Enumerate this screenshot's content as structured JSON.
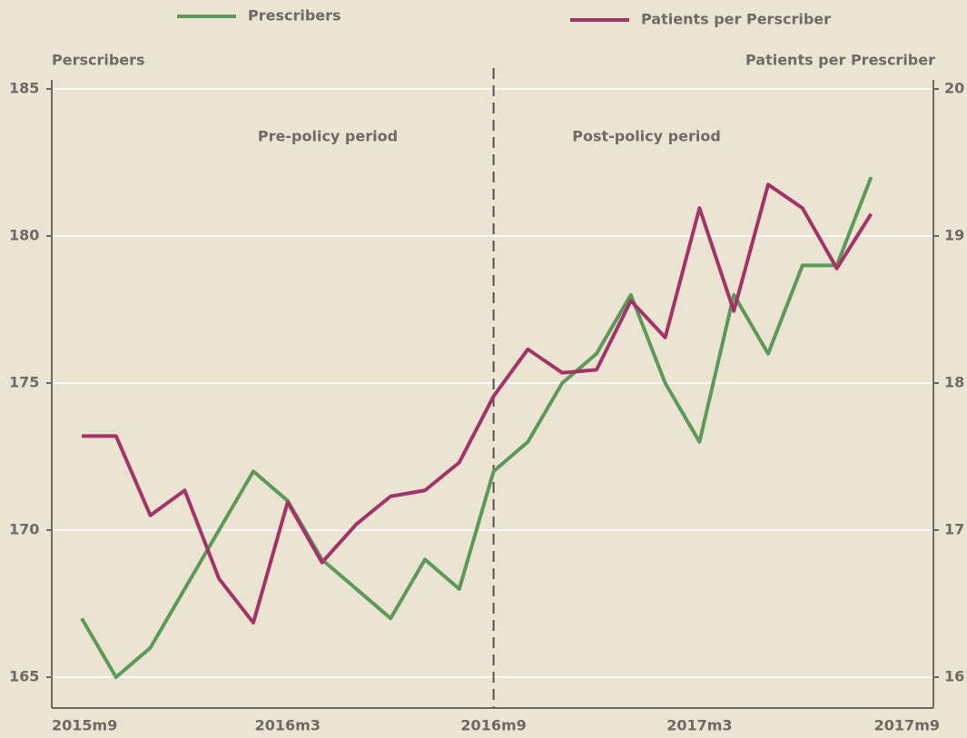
{
  "chart_data": {
    "type": "line",
    "y_label": "Perscribers",
    "y2_label": "Patients per Prescriber",
    "annotations": [
      "Pre-policy period",
      "Post-policy period"
    ],
    "policy_break": "2016m9",
    "categories": [
      "2015m9",
      null,
      null,
      null,
      null,
      null,
      "2016m3",
      null,
      null,
      null,
      null,
      null,
      "2016m9",
      null,
      null,
      null,
      null,
      null,
      "2017m3",
      null,
      null,
      null,
      null,
      null,
      "2017m9"
    ],
    "series": [
      {
        "name": "Prescribers",
        "color": "#5b9a58",
        "axis": "y",
        "values": [
          167,
          165,
          166,
          168,
          170,
          172,
          171,
          169,
          168,
          167,
          169,
          168,
          172,
          173,
          175,
          176,
          178,
          175,
          173,
          178,
          176,
          179,
          179,
          182,
          null
        ]
      },
      {
        "name": "Patients per Perscriber",
        "color": "#a3346a",
        "axis": "y2",
        "values": [
          17.64,
          17.64,
          17.1,
          17.27,
          16.67,
          16.37,
          17.19,
          16.78,
          17.04,
          17.23,
          17.27,
          17.46,
          17.91,
          18.23,
          18.07,
          18.09,
          18.56,
          18.31,
          19.19,
          18.49,
          19.35,
          19.19,
          18.78,
          19.15,
          null
        ]
      }
    ],
    "ylim": [
      165,
      185
    ],
    "yticks": [
      165,
      170,
      175,
      180,
      185
    ],
    "y2lim": [
      16,
      20
    ],
    "y2ticks": [
      16,
      17,
      18,
      19,
      20
    ],
    "grid": true
  }
}
